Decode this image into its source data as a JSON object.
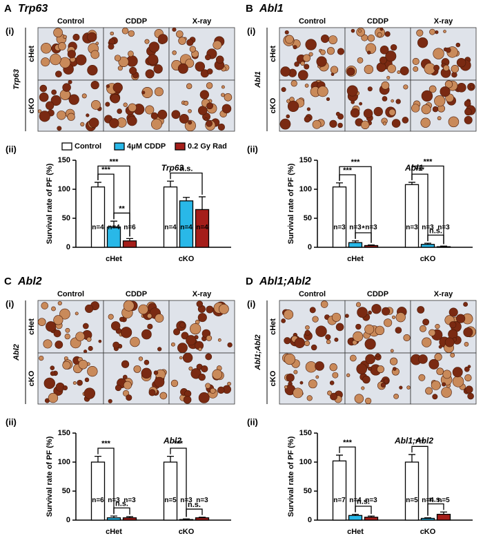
{
  "panels": [
    {
      "letter": "A",
      "gene": "Trp63",
      "part_i": "(i)",
      "part_ii": "(ii)",
      "columns": [
        "Control",
        "CDDP",
        "X-ray"
      ],
      "rows": [
        "cHet",
        "cKO"
      ],
      "side_label": "Trp63"
    },
    {
      "letter": "B",
      "gene": "Abl1",
      "part_i": "(i)",
      "part_ii": "(ii)",
      "columns": [
        "Control",
        "CDDP",
        "X-ray"
      ],
      "rows": [
        "cHet",
        "cKO"
      ],
      "side_label": "Abl1"
    },
    {
      "letter": "C",
      "gene": "Abl2",
      "part_i": "(i)",
      "part_ii": "(ii)",
      "columns": [
        "Control",
        "CDDP",
        "X-ray"
      ],
      "rows": [
        "cHet",
        "cKO"
      ],
      "side_label": "Abl2"
    },
    {
      "letter": "D",
      "gene": "Abl1;Abl2",
      "part_i": "(i)",
      "part_ii": "(ii)",
      "columns": [
        "Control",
        "CDDP",
        "X-ray"
      ],
      "rows": [
        "cHet",
        "cKO"
      ],
      "side_label": "Abl1;Abl2"
    }
  ],
  "chart_data": [
    {
      "type": "bar",
      "title": "Trp63",
      "y_label": "Survival rate of PF (%)",
      "categories": [
        "cHet",
        "cKO"
      ],
      "ylim": [
        0,
        150
      ],
      "yticks": [
        0,
        50,
        100,
        150
      ],
      "series": [
        {
          "name": "Control",
          "color": "#ffffff",
          "values": [
            104,
            104
          ],
          "errors": [
            8,
            10
          ],
          "n_labels": [
            "n=4",
            "n=4"
          ]
        },
        {
          "name": "4μM CDDP",
          "color": "#29b8e8",
          "values": [
            35,
            80
          ],
          "errors": [
            10,
            6
          ],
          "n_labels": [
            "n=4",
            "n=4"
          ]
        },
        {
          "name": "0.2 Gy Rad",
          "color": "#a51e1a",
          "values": [
            11,
            65
          ],
          "errors": [
            4,
            22
          ],
          "n_labels": [
            "n=6",
            "n=4"
          ]
        }
      ],
      "brackets": [
        {
          "text": "**",
          "category": 0,
          "between": [
            1,
            2
          ]
        },
        {
          "text": "***",
          "category": 0,
          "between": [
            0,
            1
          ]
        },
        {
          "text": "***",
          "category": 0,
          "between": [
            0,
            2
          ]
        },
        {
          "text": "n.s.",
          "category": 1,
          "between": [
            0,
            2
          ]
        }
      ]
    },
    {
      "type": "bar",
      "title": "Abl1",
      "y_label": "Survival rate of PF (%)",
      "categories": [
        "cHet",
        "cKO"
      ],
      "ylim": [
        0,
        150
      ],
      "yticks": [
        0,
        50,
        100,
        150
      ],
      "series": [
        {
          "color": "#ffffff",
          "values": [
            104,
            108
          ],
          "errors": [
            7,
            4
          ],
          "n_labels": [
            "n=3",
            "n=3"
          ]
        },
        {
          "color": "#29b8e8",
          "values": [
            8,
            5
          ],
          "errors": [
            3,
            2
          ],
          "n_labels": [
            "n=3",
            "n=3"
          ]
        },
        {
          "color": "#a51e1a",
          "values": [
            3,
            1
          ],
          "errors": [
            1,
            1
          ],
          "n_labels": [
            "n=3",
            "n=3"
          ]
        }
      ],
      "brackets": [
        {
          "text": "*",
          "category": 0,
          "between": [
            1,
            2
          ]
        },
        {
          "text": "***",
          "category": 0,
          "between": [
            0,
            1
          ]
        },
        {
          "text": "***",
          "category": 0,
          "between": [
            0,
            2
          ]
        },
        {
          "text": "n.s.",
          "category": 1,
          "between": [
            1,
            2
          ]
        },
        {
          "text": "***",
          "category": 1,
          "between": [
            0,
            1
          ]
        },
        {
          "text": "***",
          "category": 1,
          "between": [
            0,
            2
          ]
        }
      ]
    },
    {
      "type": "bar",
      "title": "Abl2",
      "y_label": "Survival rate of PF (%)",
      "categories": [
        "cHet",
        "cKO"
      ],
      "ylim": [
        0,
        150
      ],
      "yticks": [
        0,
        50,
        100,
        150
      ],
      "series": [
        {
          "color": "#ffffff",
          "values": [
            100,
            100
          ],
          "errors": [
            10,
            10
          ],
          "n_labels": [
            "n=6",
            "n=5"
          ]
        },
        {
          "color": "#29b8e8",
          "values": [
            4,
            1
          ],
          "errors": [
            3,
            1
          ],
          "n_labels": [
            "n=3",
            "n=3"
          ]
        },
        {
          "color": "#a51e1a",
          "values": [
            4,
            4
          ],
          "errors": [
            2,
            1
          ],
          "n_labels": [
            "n=3",
            "n=3"
          ]
        }
      ],
      "brackets": [
        {
          "text": "n.s.",
          "category": 0,
          "between": [
            1,
            2
          ]
        },
        {
          "text": "***",
          "category": 0,
          "between": [
            0,
            1
          ]
        },
        {
          "text": "n.s.",
          "category": 1,
          "between": [
            1,
            2
          ]
        },
        {
          "text": "***",
          "category": 1,
          "between": [
            0,
            1
          ]
        }
      ]
    },
    {
      "type": "bar",
      "title": "Abl1;Abl2",
      "y_label": "Survival rate of PF (%)",
      "categories": [
        "cHet",
        "cKO"
      ],
      "ylim": [
        0,
        150
      ],
      "yticks": [
        0,
        50,
        100,
        150
      ],
      "series": [
        {
          "color": "#ffffff",
          "values": [
            102,
            100
          ],
          "errors": [
            10,
            13
          ],
          "n_labels": [
            "n=7",
            "n=5"
          ]
        },
        {
          "color": "#29b8e8",
          "values": [
            8,
            3
          ],
          "errors": [
            2,
            1
          ],
          "n_labels": [
            "n=4",
            "n=4"
          ]
        },
        {
          "color": "#a51e1a",
          "values": [
            5,
            10
          ],
          "errors": [
            2,
            4
          ],
          "n_labels": [
            "n=3",
            "n=5"
          ]
        }
      ],
      "brackets": [
        {
          "text": "n.s.",
          "category": 0,
          "between": [
            1,
            2
          ]
        },
        {
          "text": "***",
          "category": 0,
          "between": [
            0,
            1
          ]
        },
        {
          "text": "n.s.",
          "category": 1,
          "between": [
            1,
            2
          ]
        },
        {
          "text": "***",
          "category": 1,
          "between": [
            0,
            1
          ]
        }
      ]
    }
  ]
}
